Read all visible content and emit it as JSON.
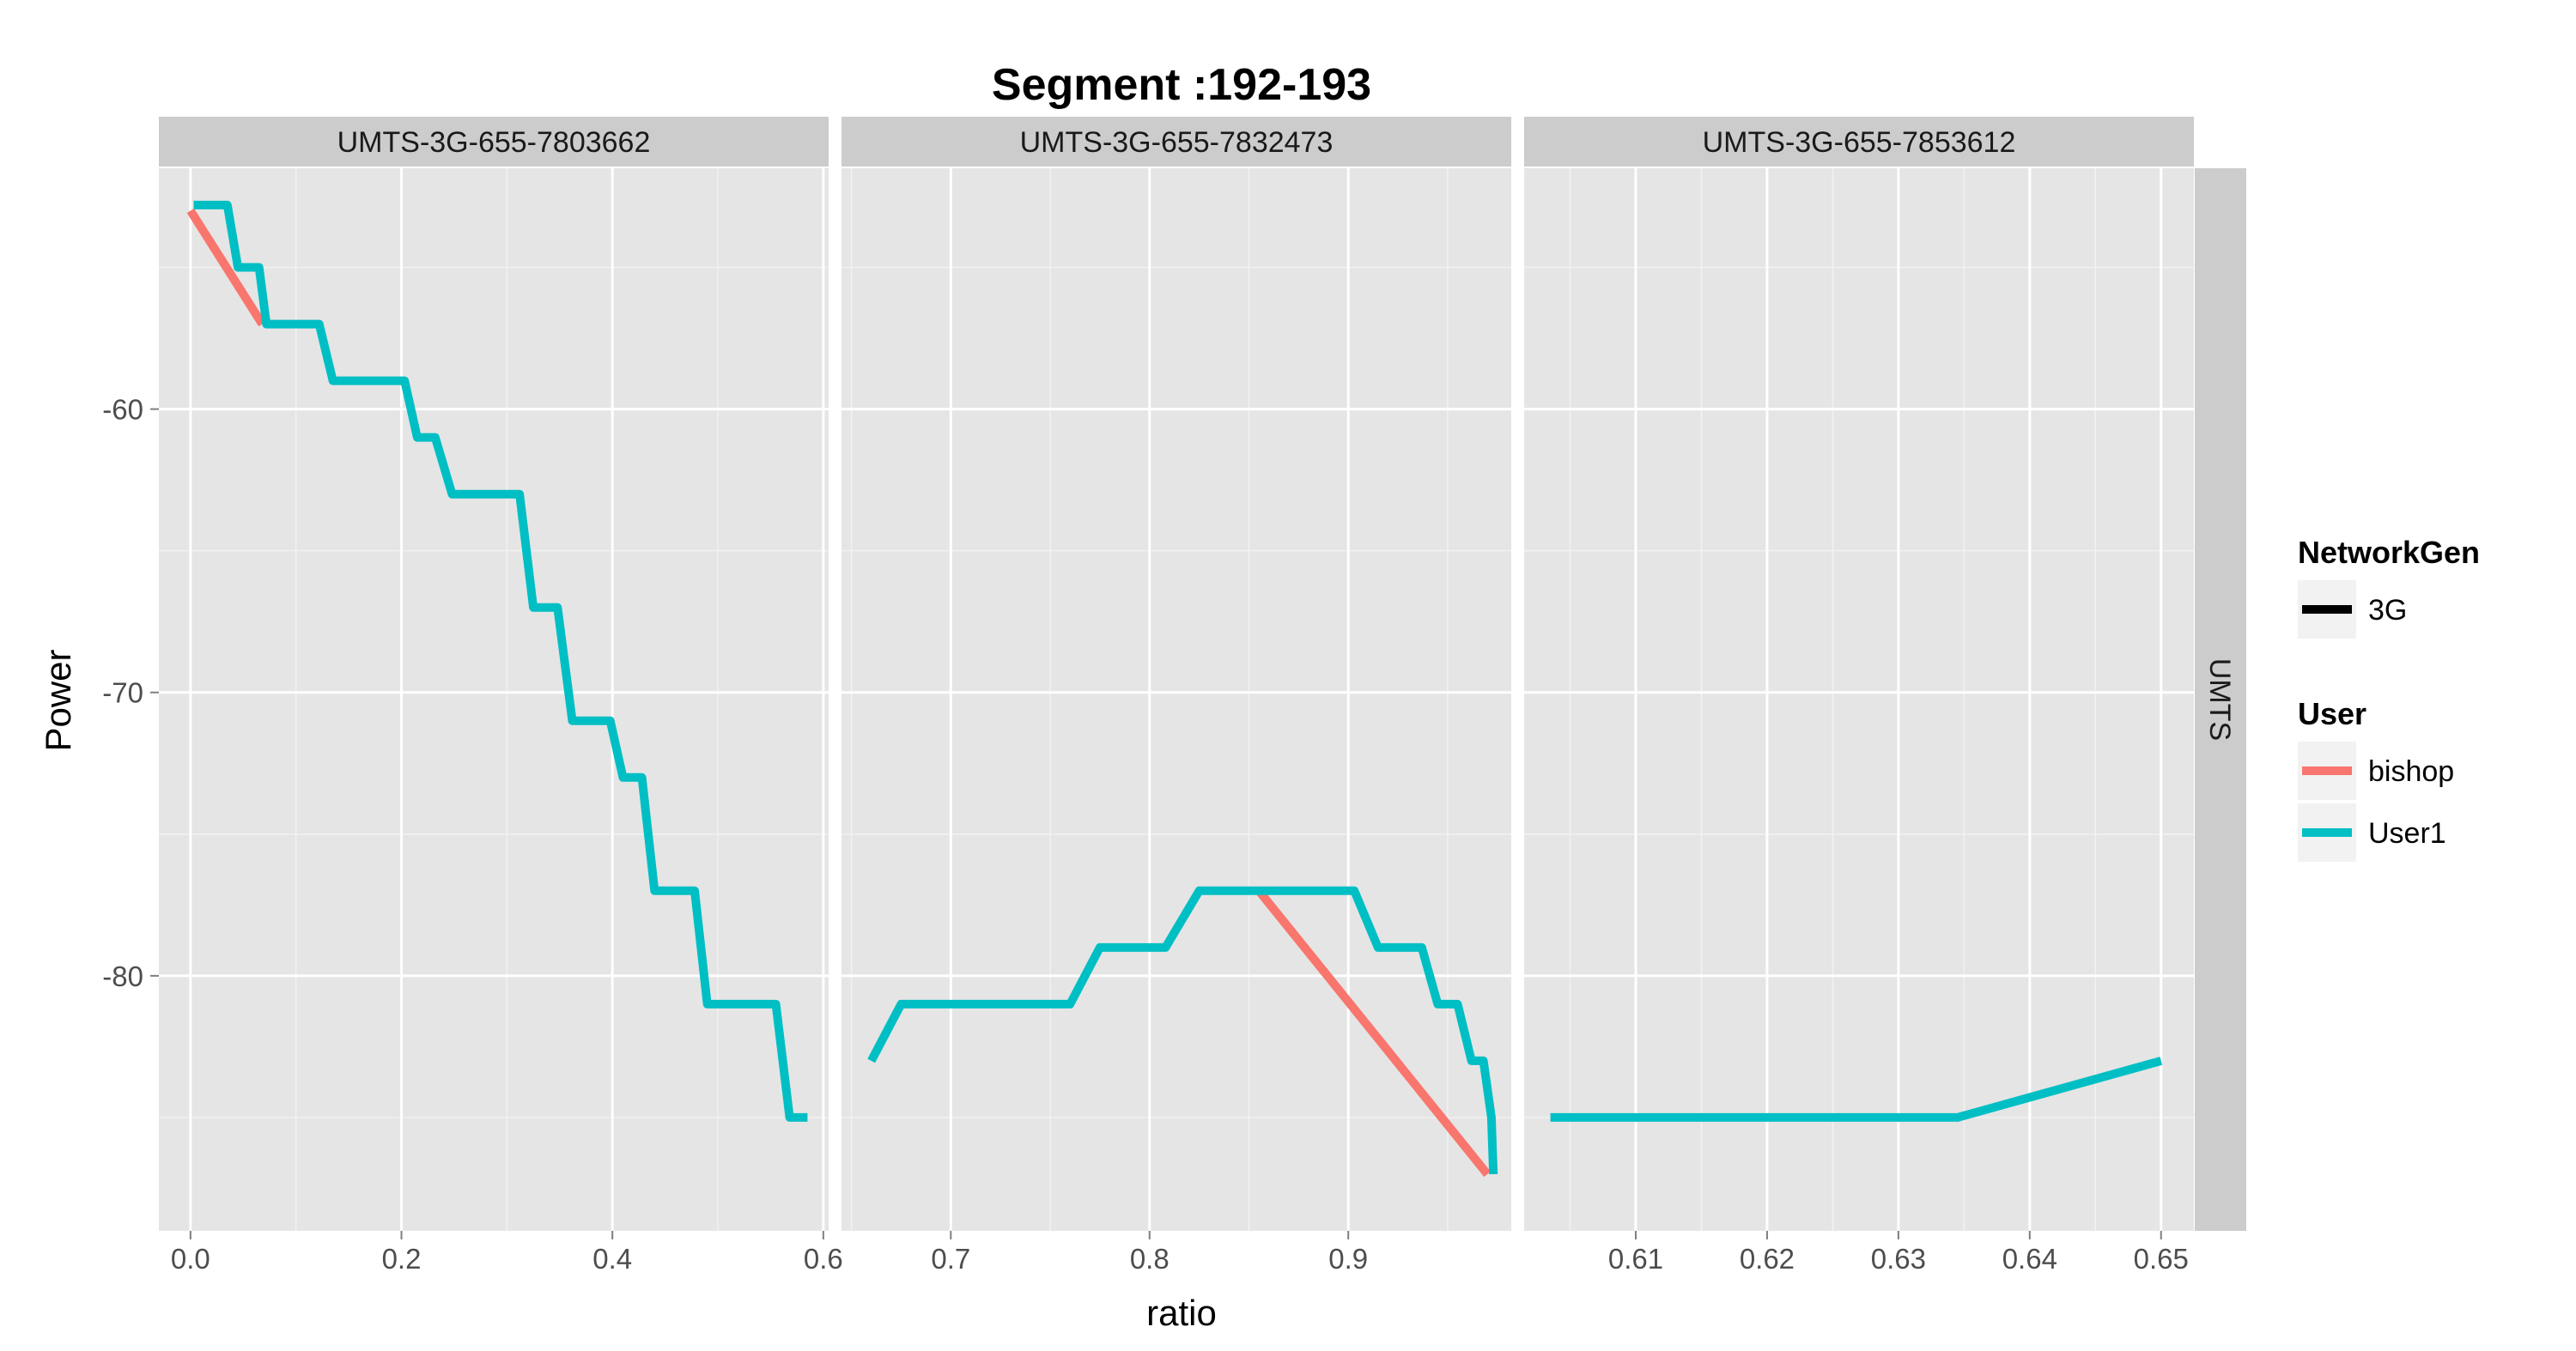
{
  "chart_data": {
    "type": "line",
    "title": "Segment :192-193",
    "xlabel": "ratio",
    "ylabel": "Power",
    "row_strip": "UMTS",
    "ylim": [
      -89,
      -51.5
    ],
    "y_ticks": [
      -60,
      -70,
      -80
    ],
    "y_tick_labels": [
      "-60",
      "-70",
      "-80"
    ],
    "grid": true,
    "legend": {
      "position": "right",
      "groups": [
        {
          "title": "NetworkGen",
          "entries": [
            {
              "label": "3G",
              "color": "#000000"
            }
          ]
        },
        {
          "title": "User",
          "entries": [
            {
              "label": "bishop",
              "color": "#F8766D"
            },
            {
              "label": "User1",
              "color": "#00BFC4"
            }
          ]
        }
      ]
    },
    "panels": [
      {
        "strip": "UMTS-3G-655-7803662",
        "xlim": [
          -0.03,
          0.605
        ],
        "x_ticks": [
          0.0,
          0.2,
          0.4,
          0.6
        ],
        "x_tick_labels": [
          "0.0",
          "0.2",
          "0.4",
          "0.6"
        ],
        "series": [
          {
            "name": "bishop",
            "color": "#F8766D",
            "x": [
              0.0,
              0.068
            ],
            "y": [
              -53,
              -57
            ]
          },
          {
            "name": "User1",
            "color": "#00BFC4",
            "x": [
              0.003,
              0.035,
              0.045,
              0.065,
              0.072,
              0.122,
              0.135,
              0.203,
              0.215,
              0.232,
              0.248,
              0.312,
              0.325,
              0.348,
              0.362,
              0.398,
              0.41,
              0.428,
              0.44,
              0.478,
              0.49,
              0.555,
              0.568,
              0.585
            ],
            "y": [
              -52.8,
              -52.8,
              -55,
              -55,
              -57,
              -57,
              -59,
              -59,
              -61,
              -61,
              -63,
              -63,
              -67,
              -67,
              -71,
              -71,
              -73,
              -73,
              -77,
              -77,
              -81,
              -81,
              -85,
              -85
            ]
          }
        ]
      },
      {
        "strip": "UMTS-3G-655-7832473",
        "xlim": [
          0.645,
          0.982
        ],
        "x_ticks": [
          0.7,
          0.8,
          0.9
        ],
        "x_tick_labels": [
          "0.7",
          "0.8",
          "0.9"
        ],
        "series": [
          {
            "name": "bishop",
            "color": "#F8766D",
            "x": [
              0.855,
              0.97
            ],
            "y": [
              -77,
              -87
            ]
          },
          {
            "name": "User1",
            "color": "#00BFC4",
            "x": [
              0.66,
              0.675,
              0.76,
              0.775,
              0.808,
              0.825,
              0.903,
              0.915,
              0.937,
              0.945,
              0.955,
              0.962,
              0.968,
              0.972,
              0.973
            ],
            "y": [
              -83,
              -81,
              -81,
              -79,
              -79,
              -77,
              -77,
              -79,
              -79,
              -81,
              -81,
              -83,
              -83,
              -85,
              -87
            ]
          }
        ]
      },
      {
        "strip": "UMTS-3G-655-7853612",
        "xlim": [
          0.6015,
          0.6525
        ],
        "x_ticks": [
          0.61,
          0.62,
          0.63,
          0.64,
          0.65
        ],
        "x_tick_labels": [
          "0.61",
          "0.62",
          "0.63",
          "0.64",
          "0.65"
        ],
        "series": [
          {
            "name": "User1",
            "color": "#00BFC4",
            "x": [
              0.6035,
              0.6345,
              0.65
            ],
            "y": [
              -85,
              -85,
              -83
            ]
          }
        ]
      }
    ]
  }
}
